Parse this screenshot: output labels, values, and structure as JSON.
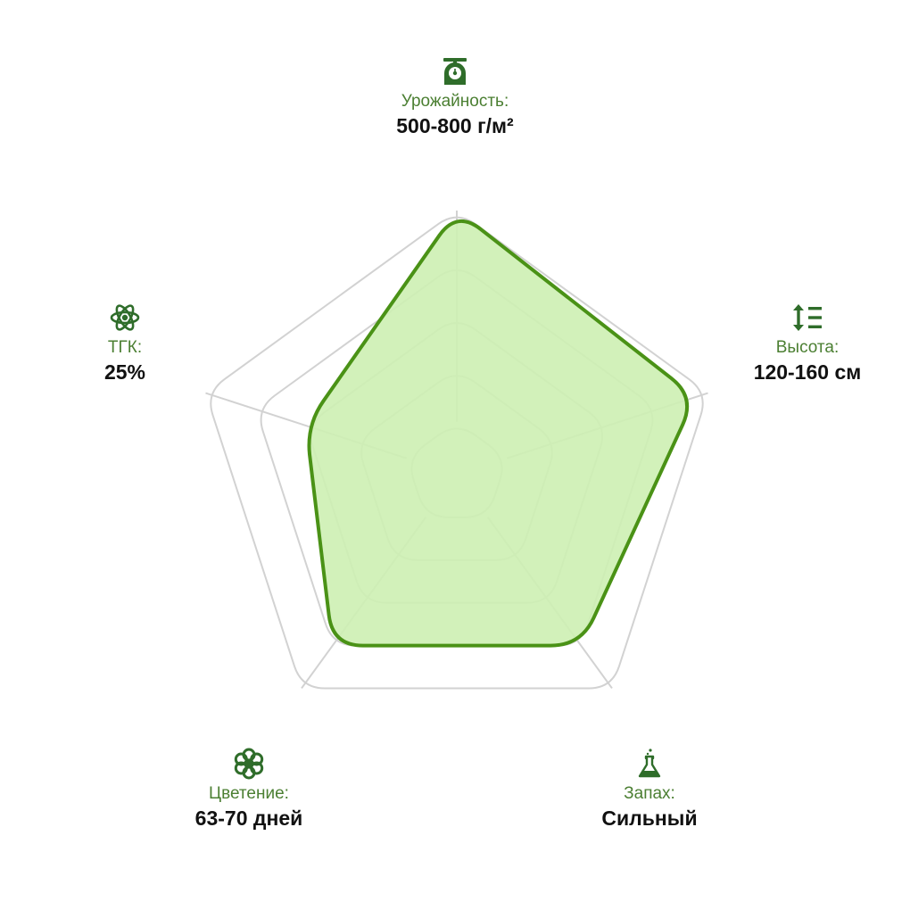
{
  "colors": {
    "fill": "#cdf0b3",
    "stroke": "#4a9216",
    "grid": "#d2d2d2",
    "label": "#4b7f32",
    "icon": "#2f6d2a"
  },
  "chart_data": {
    "type": "radar",
    "rings": 5,
    "axes": [
      {
        "label": "Урожайность:",
        "value_text": "500-800 г/м²",
        "icon": "scale-icon",
        "value": 1.0
      },
      {
        "label": "Высота:",
        "value_text": "120-160 см",
        "icon": "height-icon",
        "value": 0.95
      },
      {
        "label": "Запах:",
        "value_text": "Сильный",
        "icon": "flask-icon",
        "value": 0.8
      },
      {
        "label": "Цветение:",
        "value_text": "63-70 дней",
        "icon": "flower-icon",
        "value": 0.8
      },
      {
        "label": "ТГК:",
        "value_text": "25%",
        "icon": "atom-icon",
        "value": 0.6
      }
    ]
  }
}
